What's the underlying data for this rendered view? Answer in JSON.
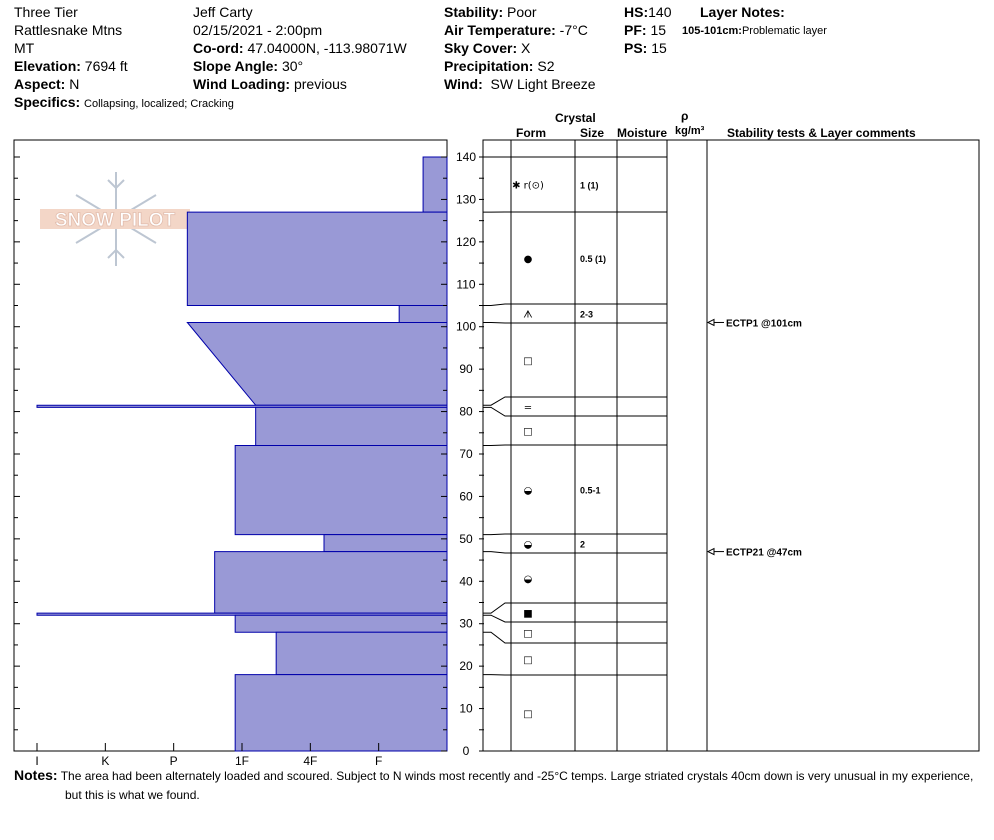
{
  "header": {
    "location_name": "Three Tier",
    "range": "Rattlesnake Mtns",
    "state": "MT",
    "elevation_label": "Elevation:",
    "elevation": "7694 ft",
    "aspect_label": "Aspect:",
    "aspect": "N",
    "specifics_label": "Specifics:",
    "specifics": "Collapsing, localized; Cracking",
    "observer": "Jeff Carty",
    "datetime": "02/15/2021 - 2:00pm",
    "coord_label": "Co-ord:",
    "coord": "47.04000N, -113.98071W",
    "slope_label": "Slope Angle:",
    "slope": "30°",
    "wind_loading_label": "Wind Loading:",
    "wind_loading": "previous",
    "stability_label": "Stability:",
    "stability": "Poor",
    "air_temp_label": "Air Temperature:",
    "air_temp": "-7°C",
    "sky_label": "Sky Cover:",
    "sky": "X",
    "precip_label": "Precipitation:",
    "precip": "S2",
    "wind_label": "Wind:",
    "wind": "SW Light Breeze",
    "hs_label": "HS:",
    "hs": "140",
    "pf_label": "PF:",
    "pf": "15",
    "ps_label": "PS:",
    "ps": "15",
    "layer_notes_label": "Layer Notes:",
    "layer_note_range": "105-101cm:",
    "layer_note_text": "Problematic layer"
  },
  "columns": {
    "crystal": "Crystal",
    "form": "Form",
    "size": "Size",
    "moisture": "Moisture",
    "rho": "ρ",
    "density_unit": "kg/m³",
    "stability": "Stability tests & Layer comments"
  },
  "logo_text": "SNOW PILOT",
  "notes_label": "Notes:",
  "notes_line1": "The area had been alternately loaded and scoured. Subject to N winds most recently and -25°C temps. Large striated crystals 40cm down is very unusual in my experience,",
  "notes_line2": "but this is what we found.",
  "chart_data": {
    "type": "bar",
    "orientation": "horizontal-profile",
    "x_categories": [
      "I",
      "K",
      "P",
      "1F",
      "4F",
      "F"
    ],
    "y_ticks": [
      0,
      10,
      20,
      30,
      40,
      50,
      60,
      70,
      80,
      90,
      100,
      110,
      120,
      130,
      140
    ],
    "ylim": [
      0,
      140
    ],
    "hardness_scale_note": "hardness index: F=1, 4F=2, 1F=3, P=4, K=5, I=6",
    "colors": {
      "fill": "#9999d6",
      "stroke": "#0000aa"
    },
    "layers": [
      {
        "top": 140,
        "bottom": 127,
        "hardness": 0.35,
        "form": "✱ r(⊙)",
        "size": "1 (1)"
      },
      {
        "top": 127,
        "bottom": 105,
        "hardness": 3.8,
        "form": "●",
        "size": "0.5 (1)"
      },
      {
        "top": 105,
        "bottom": 101,
        "hardness": 0.7,
        "form": "ᗑ",
        "size": "2-3"
      },
      {
        "top": 101,
        "bottom": 81.5,
        "hardness_top": 3.8,
        "hardness_bottom": 2.8,
        "form": "□",
        "size": ""
      },
      {
        "top": 81.5,
        "bottom": 81,
        "hardness": 6,
        "form": "=",
        "size": ""
      },
      {
        "top": 81,
        "bottom": 72,
        "hardness": 2.8,
        "form": "□",
        "size": ""
      },
      {
        "top": 72,
        "bottom": 51,
        "hardness": 3.1,
        "form": "◒",
        "size": "0.5-1"
      },
      {
        "top": 51,
        "bottom": 47,
        "hardness": 1.8,
        "form": "◒",
        "size": "2"
      },
      {
        "top": 47,
        "bottom": 32.5,
        "hardness": 3.4,
        "form": "◒",
        "size": ""
      },
      {
        "top": 32.5,
        "bottom": 32,
        "hardness": 6,
        "form": "■",
        "size": ""
      },
      {
        "top": 32,
        "bottom": 28,
        "hardness": 3.1,
        "form": "□",
        "size": ""
      },
      {
        "top": 28,
        "bottom": 18,
        "hardness": 2.5,
        "form": "□",
        "size": ""
      },
      {
        "top": 18,
        "bottom": 0,
        "hardness": 3.1,
        "form": "□",
        "size": ""
      }
    ],
    "tests": [
      {
        "depth": 101,
        "label": "ECTP1 @101cm"
      },
      {
        "depth": 47,
        "label": "ECTP21 @47cm"
      }
    ]
  }
}
